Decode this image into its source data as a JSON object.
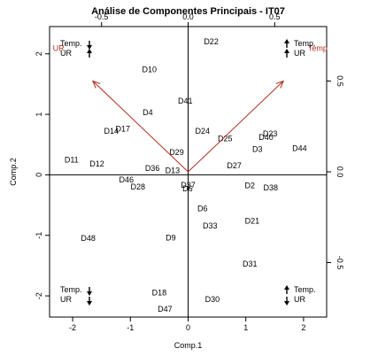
{
  "chart_data": {
    "type": "scatter",
    "title": "Análise de Componentes Principais - IT07",
    "xlabel": "Comp.1",
    "ylabel": "Comp.2",
    "xlim": [
      -2.4,
      2.4
    ],
    "ylim": [
      -2.35,
      2.45
    ],
    "top_axis": {
      "lim": [
        -0.8,
        0.8
      ],
      "ticks": [
        -0.5,
        0.0,
        0.5
      ],
      "tick_labels": [
        "-0.5",
        "0.0",
        "0.5"
      ]
    },
    "right_axis": {
      "lim": [
        -0.8,
        0.8
      ],
      "ticks": [
        -0.5,
        0.0,
        0.5
      ],
      "tick_labels": [
        "-0.5",
        "0.0",
        "0.5"
      ]
    },
    "x_ticks": [
      -2,
      -1,
      0,
      1,
      2
    ],
    "x_tick_labels": [
      "-2",
      "-1",
      "0",
      "1",
      "2"
    ],
    "y_ticks": [
      -2,
      -1,
      0,
      1,
      2
    ],
    "y_tick_labels": [
      "-2",
      "-1",
      "0",
      "1",
      "2"
    ],
    "points": [
      {
        "label": "D22",
        "x": 0.4,
        "y": 2.2
      },
      {
        "label": "D10",
        "x": -0.67,
        "y": 1.74
      },
      {
        "label": "D41",
        "x": -0.05,
        "y": 1.22
      },
      {
        "label": "D4",
        "x": -0.7,
        "y": 1.03
      },
      {
        "label": "D14",
        "x": -1.33,
        "y": 0.72
      },
      {
        "label": "D17",
        "x": -1.13,
        "y": 0.76
      },
      {
        "label": "D24",
        "x": 0.25,
        "y": 0.72
      },
      {
        "label": "D25",
        "x": 0.64,
        "y": 0.6
      },
      {
        "label": "D23",
        "x": 1.42,
        "y": 0.68
      },
      {
        "label": "D40",
        "x": 1.35,
        "y": 0.62
      },
      {
        "label": "D3",
        "x": 1.2,
        "y": 0.42
      },
      {
        "label": "D44",
        "x": 1.93,
        "y": 0.44
      },
      {
        "label": "D29",
        "x": -0.2,
        "y": 0.37
      },
      {
        "label": "D27",
        "x": 0.8,
        "y": 0.15
      },
      {
        "label": "D11",
        "x": -2.02,
        "y": 0.25
      },
      {
        "label": "D12",
        "x": -1.58,
        "y": 0.18
      },
      {
        "label": "D36",
        "x": -0.62,
        "y": 0.11
      },
      {
        "label": "D13",
        "x": -0.27,
        "y": 0.07
      },
      {
        "label": "D46",
        "x": -1.07,
        "y": -0.08
      },
      {
        "label": "D28",
        "x": -0.87,
        "y": -0.2
      },
      {
        "label": "D37",
        "x": 0.0,
        "y": -0.17
      },
      {
        "label": "D6",
        "x": -0.01,
        "y": -0.23
      },
      {
        "label": "D2",
        "x": 1.07,
        "y": -0.18
      },
      {
        "label": "D38",
        "x": 1.43,
        "y": -0.21
      },
      {
        "label": "D6",
        "x": 0.25,
        "y": -0.56
      },
      {
        "label": "D21",
        "x": 1.11,
        "y": -0.76
      },
      {
        "label": "D33",
        "x": 0.38,
        "y": -0.84
      },
      {
        "label": "D48",
        "x": -1.73,
        "y": -1.05
      },
      {
        "label": "D9",
        "x": -0.3,
        "y": -1.04
      },
      {
        "label": "D31",
        "x": 1.07,
        "y": -1.47
      },
      {
        "label": "D18",
        "x": -0.5,
        "y": -1.95
      },
      {
        "label": "D30",
        "x": 0.42,
        "y": -2.06
      },
      {
        "label": "D47",
        "x": -0.4,
        "y": -2.22
      }
    ],
    "variables": [
      {
        "label": "Temp",
        "x": 0.55,
        "y": 0.5
      },
      {
        "label": "UR",
        "x": -0.55,
        "y": 0.5
      }
    ],
    "corner_labels": {
      "top_left": {
        "line1": "Temp.",
        "line2": "UR",
        "arrow1": "down",
        "arrow2": "up"
      },
      "top_right": {
        "line1": "Temp.",
        "line2": "UR",
        "arrow1": "up",
        "arrow2": "up"
      },
      "bottom_left": {
        "line1": "Temp.",
        "line2": "UR",
        "arrow1": "down",
        "arrow2": "down"
      },
      "bottom_right": {
        "line1": "Temp.",
        "line2": "UR",
        "arrow1": "up",
        "arrow2": "down"
      }
    },
    "colors": {
      "points": "#000000",
      "variables": "#b03020",
      "axes": "#000000"
    },
    "grid": false
  }
}
